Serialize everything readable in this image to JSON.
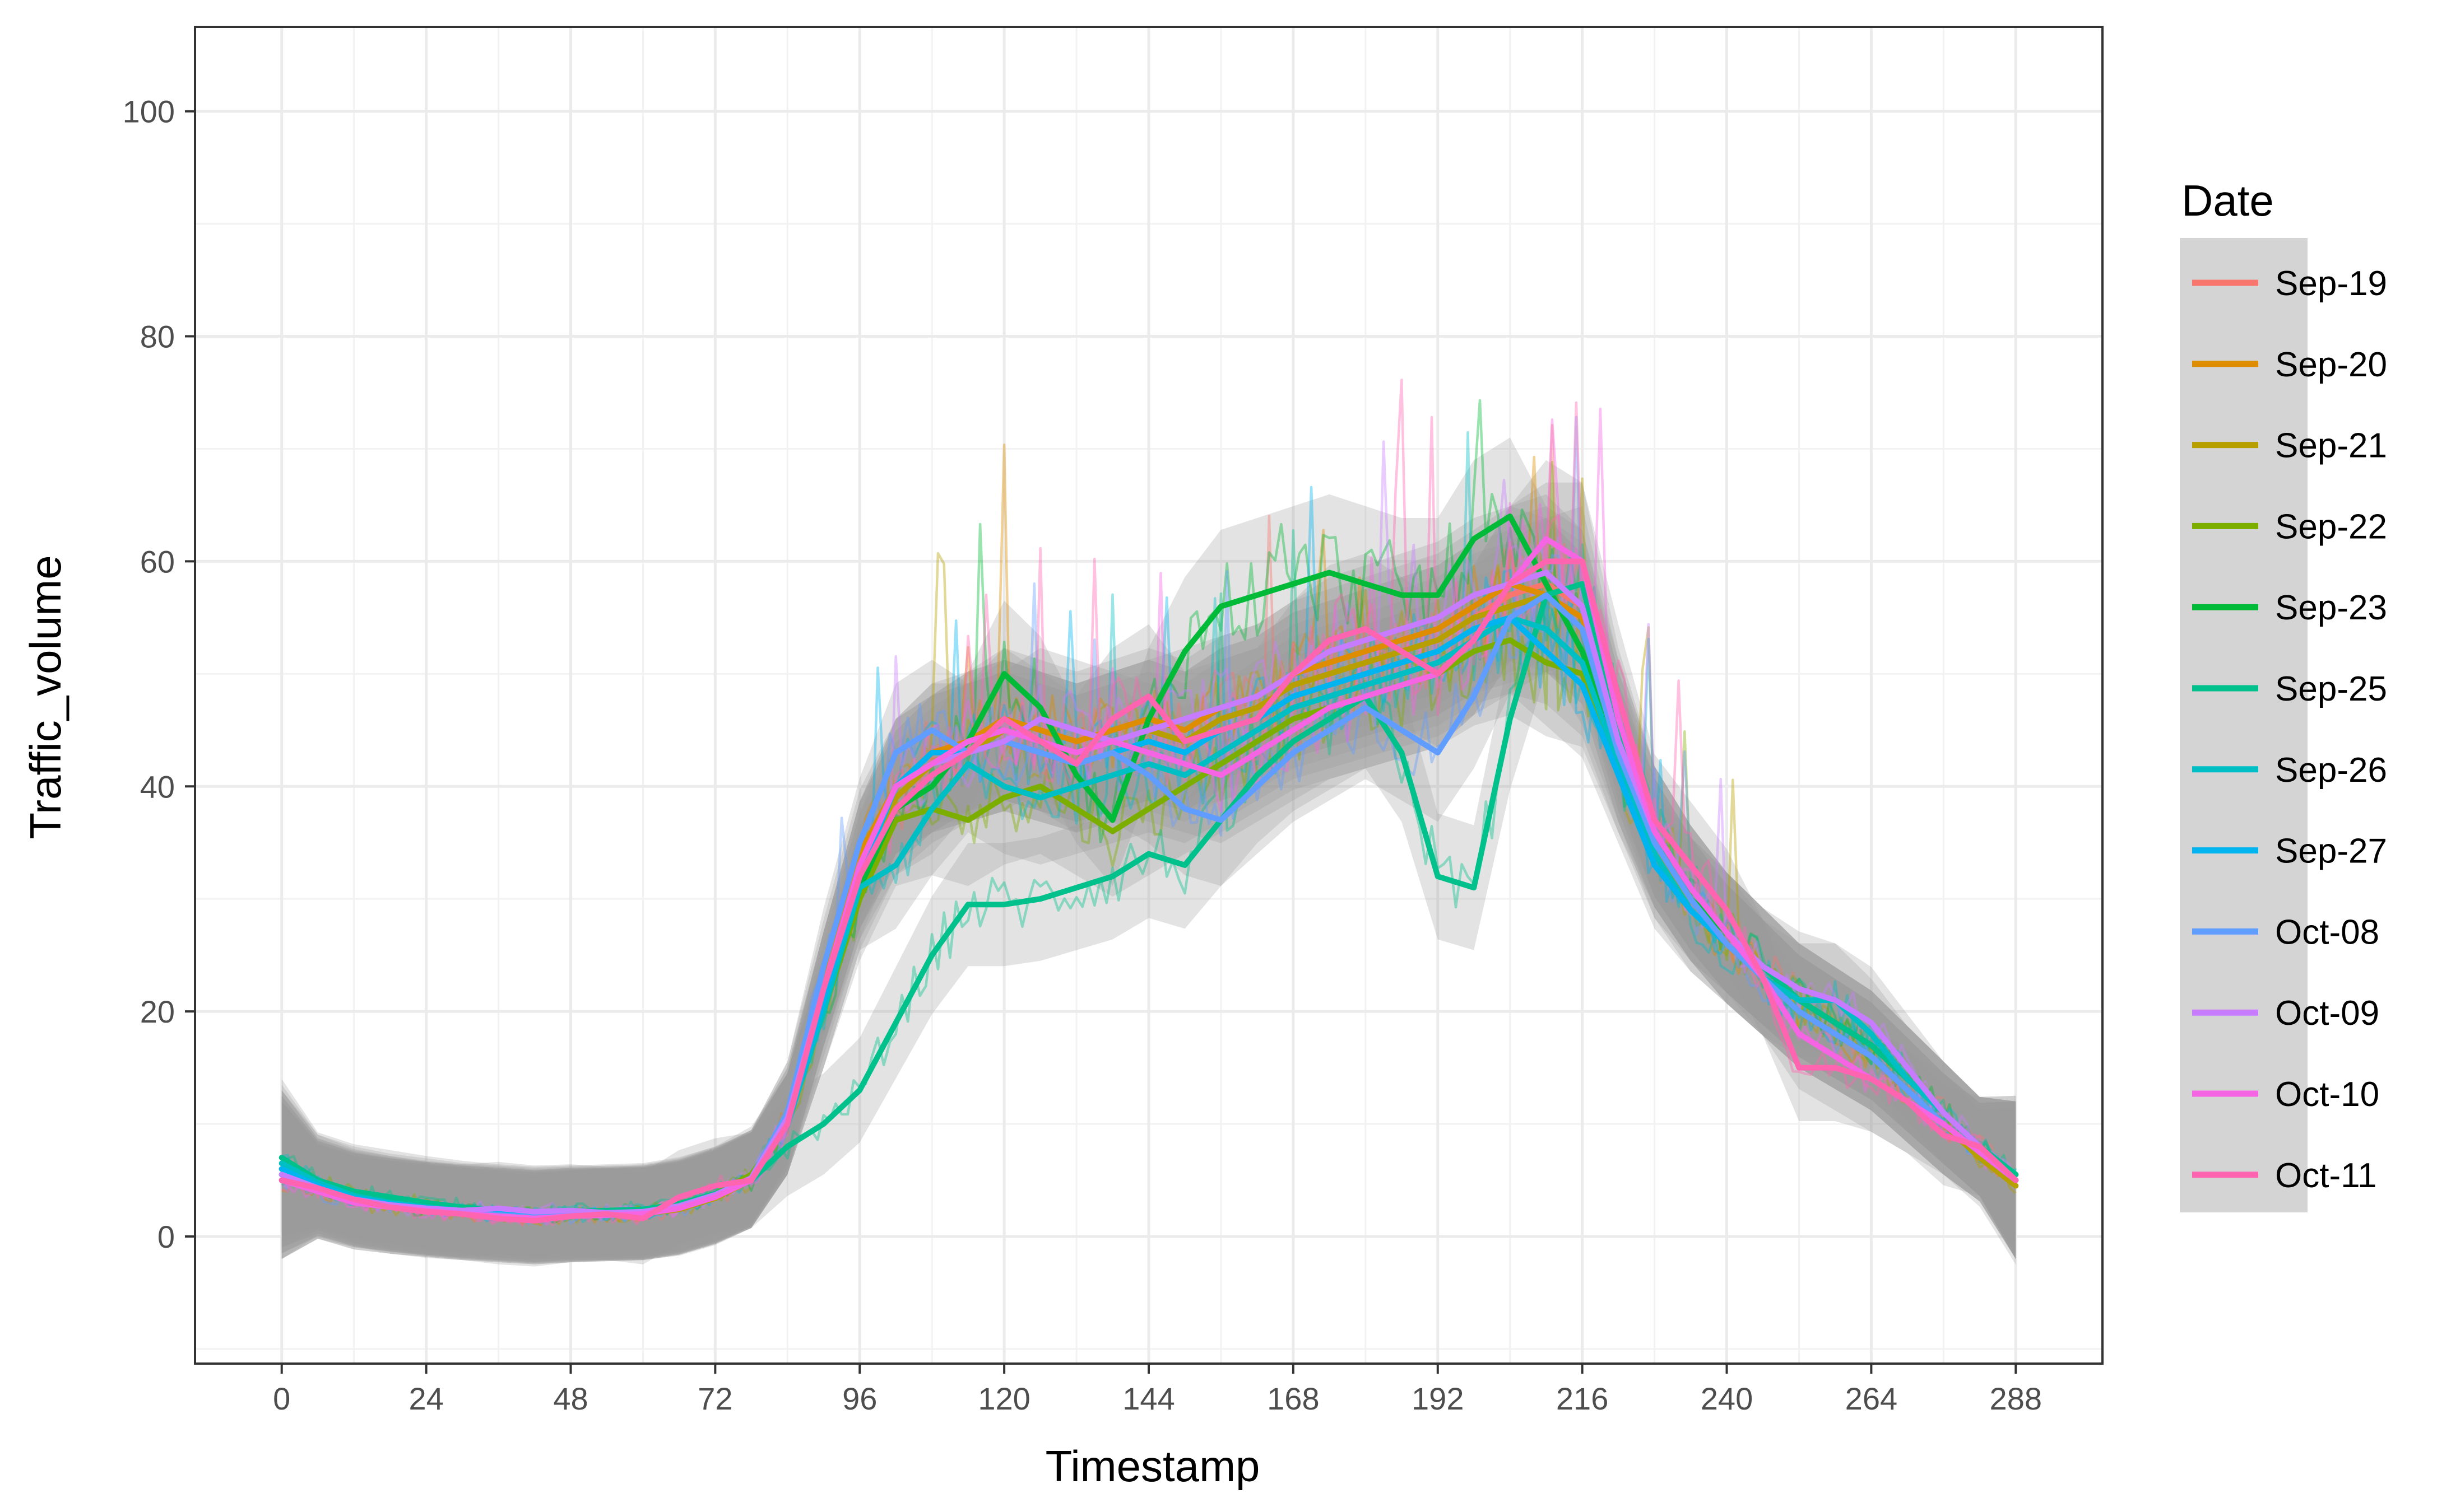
{
  "chart_data": {
    "type": "line",
    "xlabel": "Timestamp",
    "ylabel": "Traffic_volume",
    "xlim": [
      -14.4,
      302.4
    ],
    "ylim": [
      -11.3,
      107.5
    ],
    "x_ticks": [
      0,
      24,
      48,
      72,
      96,
      120,
      144,
      168,
      192,
      216,
      240,
      264,
      288
    ],
    "y_ticks": [
      0,
      20,
      40,
      60,
      80,
      100
    ],
    "grid": true,
    "legend": {
      "title": "Date",
      "position": "right"
    },
    "smooth_x": [
      0,
      6,
      12,
      18,
      24,
      30,
      36,
      42,
      48,
      54,
      60,
      66,
      72,
      78,
      84,
      90,
      96,
      102,
      108,
      114,
      120,
      126,
      132,
      138,
      144,
      150,
      156,
      162,
      168,
      174,
      180,
      186,
      192,
      198,
      204,
      210,
      216,
      222,
      228,
      234,
      240,
      246,
      252,
      258,
      264,
      270,
      276,
      282,
      288
    ],
    "series": [
      {
        "name": "Sep-19",
        "color": "#F8766D",
        "values": [
          6,
          4.5,
          3.5,
          3,
          2.5,
          2.2,
          2,
          1.8,
          2,
          2,
          2,
          2.5,
          3.5,
          5,
          10,
          22,
          33,
          39,
          42,
          44,
          45,
          44,
          43,
          44,
          45,
          44,
          46,
          47,
          49,
          50,
          51,
          52,
          53,
          55,
          57,
          58,
          56,
          45,
          36,
          31,
          27,
          24,
          21,
          19,
          17,
          14,
          11,
          8,
          5
        ]
      },
      {
        "name": "Sep-20",
        "color": "#DE8C00",
        "values": [
          5.5,
          4.2,
          3.2,
          2.8,
          2.4,
          2.1,
          1.9,
          1.7,
          1.9,
          2,
          2.1,
          2.6,
          3.6,
          5.2,
          11,
          23,
          34,
          40,
          43,
          44,
          46,
          45,
          44,
          45,
          46,
          45,
          47,
          48,
          50,
          51,
          52,
          53,
          54,
          56,
          58,
          57,
          55,
          44,
          35,
          30,
          26,
          23,
          20,
          18,
          16,
          13,
          10,
          7.5,
          5
        ]
      },
      {
        "name": "Sep-21",
        "color": "#B79F00",
        "values": [
          5,
          4,
          3,
          2.6,
          2.3,
          2,
          1.8,
          1.6,
          1.8,
          1.9,
          2,
          2.4,
          3.4,
          5,
          10.5,
          22,
          33,
          39,
          42,
          43,
          45,
          44,
          43,
          44,
          45,
          44,
          46,
          47,
          49,
          50,
          51,
          52,
          53,
          55,
          56,
          57,
          54,
          43,
          34,
          30,
          26,
          23,
          20,
          18,
          16,
          13,
          10,
          7,
          4.5
        ]
      },
      {
        "name": "Sep-22",
        "color": "#7CAE00",
        "values": [
          6,
          4.8,
          3.8,
          3.2,
          2.8,
          2.4,
          2.2,
          2,
          2.1,
          2.2,
          2.3,
          2.8,
          3.8,
          5.5,
          10,
          20,
          30,
          37,
          38,
          37,
          39,
          40,
          38,
          36,
          38,
          40,
          42,
          44,
          46,
          47,
          48,
          49,
          50,
          52,
          53,
          51,
          50,
          42,
          35,
          30,
          27,
          24,
          21,
          19,
          17,
          14,
          11,
          8,
          5.5
        ]
      },
      {
        "name": "Sep-23",
        "color": "#00BA38",
        "values": [
          5.5,
          4.3,
          3.3,
          2.8,
          2.5,
          2.2,
          2,
          1.8,
          2,
          2,
          2.1,
          2.6,
          3.6,
          5,
          10,
          20,
          31,
          38,
          40,
          44,
          50,
          47,
          41,
          37,
          46,
          52,
          56,
          57,
          58,
          59,
          58,
          57,
          57,
          62,
          64,
          58,
          52,
          43,
          35,
          30,
          27,
          24,
          21,
          19,
          17,
          14,
          11,
          8,
          5
        ]
      },
      {
        "name": "Sep-25",
        "color": "#00C08B",
        "values": [
          7,
          5,
          4,
          3.5,
          3,
          2.6,
          2.3,
          2.1,
          2.2,
          2.3,
          2.4,
          2.9,
          3.8,
          5,
          8,
          10,
          13,
          19,
          25,
          29.5,
          29.5,
          30,
          31,
          32,
          34,
          33,
          37,
          41,
          44,
          46,
          48,
          43,
          32,
          31,
          46,
          57,
          58,
          45,
          36,
          31,
          27,
          24,
          21,
          19,
          17,
          14,
          11,
          8,
          5.5
        ]
      },
      {
        "name": "Sep-26",
        "color": "#00BFC4",
        "values": [
          6.5,
          4.8,
          3.6,
          3,
          2.6,
          2.3,
          2.1,
          1.9,
          2,
          2.1,
          2.2,
          2.7,
          3.7,
          5.2,
          10,
          20,
          31,
          33,
          38,
          42,
          40,
          39,
          40,
          41,
          42,
          41,
          43,
          45,
          47,
          48,
          49,
          50,
          51,
          53,
          55,
          54,
          51,
          42,
          34,
          29,
          26,
          23,
          21,
          21,
          18,
          14,
          11,
          8,
          5
        ]
      },
      {
        "name": "Sep-27",
        "color": "#00B4F0",
        "values": [
          6,
          4.5,
          3.4,
          2.9,
          2.5,
          2.2,
          2,
          1.8,
          1.9,
          2,
          2.1,
          2.6,
          3.6,
          5,
          10,
          21,
          32,
          40,
          43,
          43,
          44,
          43,
          42,
          43,
          44,
          43,
          45,
          46,
          48,
          49,
          50,
          51,
          52,
          54,
          55,
          52,
          49,
          41,
          33,
          29,
          26,
          23,
          20,
          18,
          16,
          13,
          10,
          7.5,
          5
        ]
      },
      {
        "name": "Oct-08",
        "color": "#619CFF",
        "values": [
          5,
          4,
          3.2,
          2.8,
          2.4,
          2.1,
          1.9,
          1.7,
          1.8,
          1.9,
          2,
          2.5,
          3.5,
          5.2,
          11,
          24,
          35,
          43,
          45,
          43,
          44,
          43,
          42,
          43,
          41,
          38,
          37,
          40,
          43,
          45,
          47,
          45,
          43,
          48,
          55,
          57,
          54,
          43,
          35,
          30,
          26,
          23,
          20,
          18,
          16,
          13,
          10,
          7.5,
          5
        ]
      },
      {
        "name": "Oct-09",
        "color": "#C77CFF",
        "values": [
          5.5,
          4.3,
          3.3,
          2.8,
          2.5,
          2.3,
          2.5,
          2.2,
          2.3,
          2.1,
          2.2,
          2.7,
          3.7,
          5.2,
          10.5,
          22,
          33,
          40,
          42,
          43,
          44,
          46,
          45,
          44,
          45,
          46,
          47,
          48,
          50,
          52,
          53,
          54,
          55,
          57,
          58,
          59,
          56,
          44,
          36,
          31,
          27,
          24,
          22,
          21,
          19,
          15,
          11,
          8,
          5
        ]
      },
      {
        "name": "Oct-10",
        "color": "#F564E3",
        "values": [
          5,
          4,
          3,
          2.6,
          2.3,
          2,
          1.8,
          1.6,
          1.8,
          1.9,
          2,
          2.5,
          3.5,
          5,
          10,
          22,
          33,
          40,
          42,
          44,
          45,
          44,
          43,
          44,
          43,
          42,
          41,
          43,
          45,
          47,
          48,
          49,
          50,
          53,
          58,
          62,
          60,
          46,
          36,
          31,
          27,
          23,
          18,
          16,
          14,
          12,
          10,
          7.5,
          5
        ]
      },
      {
        "name": "Oct-11",
        "color": "#FF64B0",
        "values": [
          5,
          4.3,
          3.3,
          2.6,
          2.2,
          2,
          1.6,
          1.4,
          1.8,
          2,
          1.6,
          3.5,
          4.5,
          5,
          10,
          22,
          32,
          38,
          41,
          43,
          46,
          44,
          42,
          46,
          48,
          44,
          45,
          46,
          50,
          53,
          54,
          52,
          50,
          53,
          58,
          60,
          60,
          48,
          37,
          33,
          29,
          23,
          15,
          15,
          14,
          12,
          9,
          8,
          5
        ]
      }
    ]
  }
}
